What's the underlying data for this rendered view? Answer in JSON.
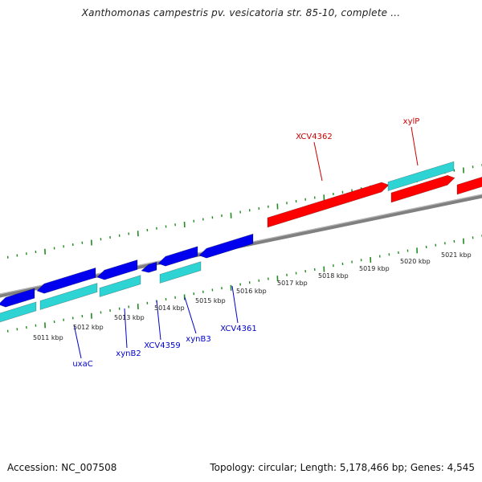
{
  "header": {
    "title": "Xanthomonas campestris pv. vesicatoria str. 85-10, complete ..."
  },
  "footer": {
    "accession": "Accession: NC_007508",
    "summary": "Topology: circular; Length: 5,178,466 bp; Genes: 4,545"
  },
  "colors": {
    "backbone": "#808080",
    "tick": "#228b22",
    "forward_gene": "#ff0000",
    "reverse_gene": "#0000ee",
    "cds": "#2ed3d3",
    "forward_label": "#cc0000",
    "reverse_label": "#0000cc"
  },
  "ruler": {
    "tick_labels": [
      "5011 kbp",
      "5012 kbp",
      "5013 kbp",
      "5014 kbp",
      "5015 kbp",
      "5016 kbp",
      "5017 kbp",
      "5018 kbp",
      "5019 kbp",
      "5020 kbp",
      "5021 kbp"
    ]
  },
  "gene_labels": {
    "forward": [
      "XCV4362",
      "xylP"
    ],
    "reverse": [
      "uxaC",
      "xynB2",
      "XCV4359",
      "xynB3",
      "XCV4361"
    ]
  }
}
